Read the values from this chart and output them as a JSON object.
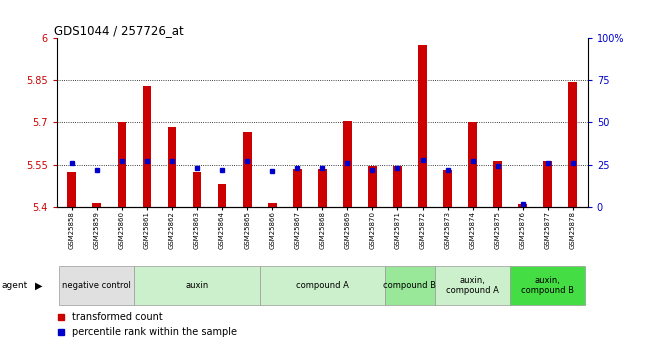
{
  "title": "GDS1044 / 257726_at",
  "samples": [
    "GSM25858",
    "GSM25859",
    "GSM25860",
    "GSM25861",
    "GSM25862",
    "GSM25863",
    "GSM25864",
    "GSM25865",
    "GSM25866",
    "GSM25867",
    "GSM25868",
    "GSM25869",
    "GSM25870",
    "GSM25871",
    "GSM25872",
    "GSM25873",
    "GSM25874",
    "GSM25875",
    "GSM25876",
    "GSM25877",
    "GSM25878"
  ],
  "transformed_count": [
    5.525,
    5.415,
    5.7,
    5.83,
    5.685,
    5.525,
    5.48,
    5.665,
    5.415,
    5.535,
    5.535,
    5.705,
    5.545,
    5.545,
    5.975,
    5.53,
    5.7,
    5.565,
    5.41,
    5.565,
    5.845
  ],
  "percentile_rank": [
    26,
    22,
    27,
    27,
    27,
    23,
    22,
    27,
    21,
    23,
    23,
    26,
    22,
    23,
    28,
    22,
    27,
    24,
    2,
    26,
    26
  ],
  "ylim": [
    5.4,
    6.0
  ],
  "yticks": [
    5.4,
    5.55,
    5.7,
    5.85,
    6.0
  ],
  "ytick_labels": [
    "5.4",
    "5.55",
    "5.7",
    "5.85",
    "6"
  ],
  "right_yticks": [
    0,
    25,
    50,
    75,
    100
  ],
  "right_ytick_labels": [
    "0",
    "25",
    "50",
    "75",
    "100%"
  ],
  "hlines": [
    5.55,
    5.7,
    5.85
  ],
  "bar_color": "#cc0000",
  "dot_color": "#0000cc",
  "agent_groups": [
    {
      "label": "negative control",
      "start": 0,
      "end": 3,
      "color": "#e0e0e0"
    },
    {
      "label": "auxin",
      "start": 3,
      "end": 8,
      "color": "#ccf0cc"
    },
    {
      "label": "compound A",
      "start": 8,
      "end": 13,
      "color": "#ccf0cc"
    },
    {
      "label": "compound B",
      "start": 13,
      "end": 15,
      "color": "#99e899"
    },
    {
      "label": "auxin,\ncompound A",
      "start": 15,
      "end": 18,
      "color": "#ccf0cc"
    },
    {
      "label": "auxin,\ncompound B",
      "start": 18,
      "end": 21,
      "color": "#44dd44"
    }
  ],
  "legend_items": [
    {
      "label": "transformed count",
      "color": "#cc0000"
    },
    {
      "label": "percentile rank within the sample",
      "color": "#0000cc"
    }
  ]
}
